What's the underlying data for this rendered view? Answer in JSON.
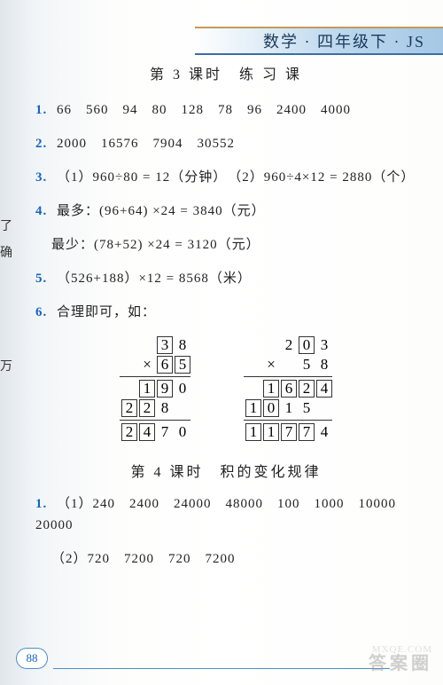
{
  "header": "数学 · 四年级下 · JS",
  "section3_title": "第 3 课时　练 习 课",
  "q1": {
    "num": "1.",
    "text": "66　560　94　80　128　78　96　2400　4000"
  },
  "q2": {
    "num": "2.",
    "text": "2000　16576　7904　30552"
  },
  "q3": {
    "num": "3.",
    "text": "（1）960÷80 = 12（分钟）　（2）960÷4×12 = 2880（个）"
  },
  "q4": {
    "num": "4.",
    "text": "最多：(96+64) ×24 = 3840（元）",
    "text2": "最少：(78+52) ×24 = 3120（元）"
  },
  "q5": {
    "num": "5.",
    "text": "（526+188）×12 = 8568（米）"
  },
  "q6": {
    "num": "6.",
    "text": "合理即可，如："
  },
  "cut1": "了",
  "cut2": "确",
  "cut3": "万",
  "mult1": {
    "r1": [
      "",
      "3",
      "8"
    ],
    "r2": [
      "×",
      "6",
      "5"
    ],
    "r3": [
      "1",
      "9",
      "0"
    ],
    "r4": [
      "2",
      "2",
      "8",
      ""
    ],
    "r5": [
      "2",
      "4",
      "7",
      "0"
    ],
    "box_r1": [
      false,
      true,
      false
    ],
    "box_r2": [
      false,
      true,
      true
    ],
    "box_r3": [
      true,
      true,
      false
    ],
    "box_r4": [
      true,
      true,
      false,
      false
    ],
    "box_r5": [
      true,
      true,
      false,
      false
    ]
  },
  "mult2": {
    "r1": [
      "",
      "2",
      "0",
      "3"
    ],
    "r2": [
      "×",
      "",
      "5",
      "8"
    ],
    "r3": [
      "1",
      "6",
      "2",
      "4"
    ],
    "r4": [
      "1",
      "0",
      "1",
      "5",
      ""
    ],
    "r5": [
      "1",
      "1",
      "7",
      "7",
      "4"
    ],
    "box_r1": [
      false,
      false,
      true,
      false
    ],
    "box_r2": [
      false,
      false,
      false,
      false
    ],
    "box_r3": [
      true,
      true,
      true,
      true
    ],
    "box_r4": [
      true,
      true,
      false,
      false,
      false
    ],
    "box_r5": [
      true,
      true,
      true,
      true,
      false
    ]
  },
  "section4_title": "第 4 课时　积的变化规律",
  "s4q1": {
    "num": "1.",
    "text": "（1）240　2400　24000　48000　100　1000　10000　20000",
    "text2": "（2）720　7200　720　7200"
  },
  "page_num": "88",
  "wm1": "答案圈",
  "wm2": "MXQE.COM"
}
